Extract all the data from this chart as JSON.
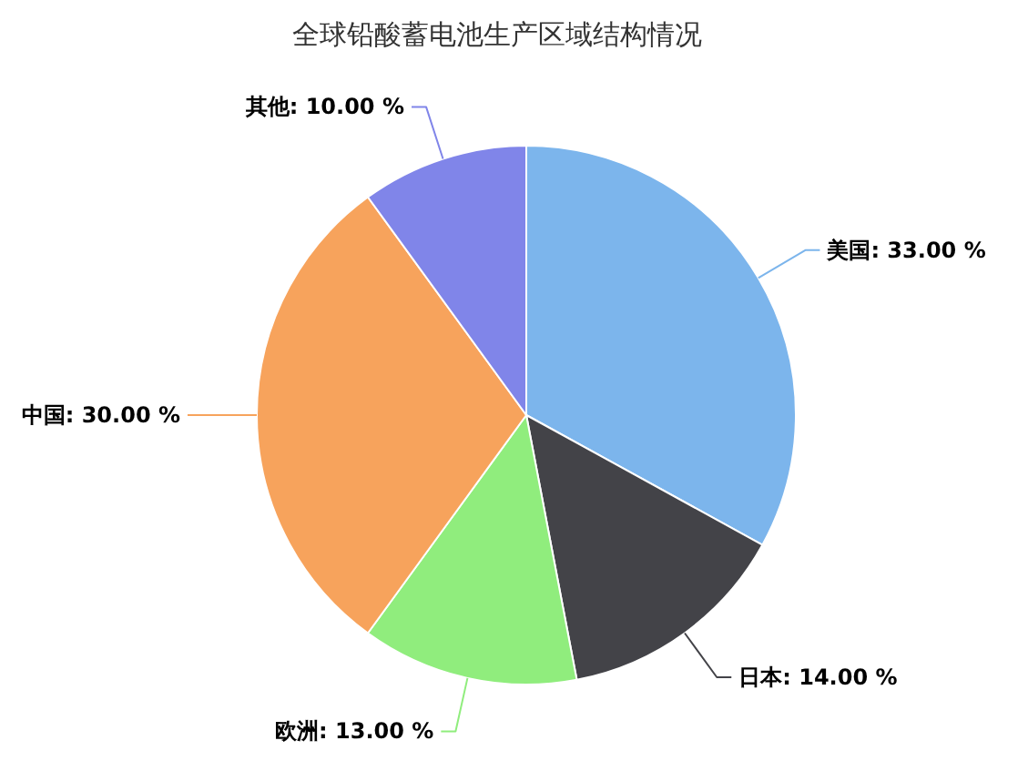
{
  "chart_data": {
    "type": "pie",
    "title": "全球铅酸蓄电池生产区域结构情况",
    "categories": [
      "美国",
      "日本",
      "欧洲",
      "中国",
      "其他"
    ],
    "values": [
      33,
      14,
      13,
      30,
      10
    ],
    "colors": [
      "#7cb5ec",
      "#434348",
      "#90ed7d",
      "#f7a35c",
      "#8085e9"
    ],
    "value_labels": [
      "33.00 %",
      "14.00 %",
      "13.00 %",
      "30.00 %",
      "10.00 %"
    ]
  }
}
